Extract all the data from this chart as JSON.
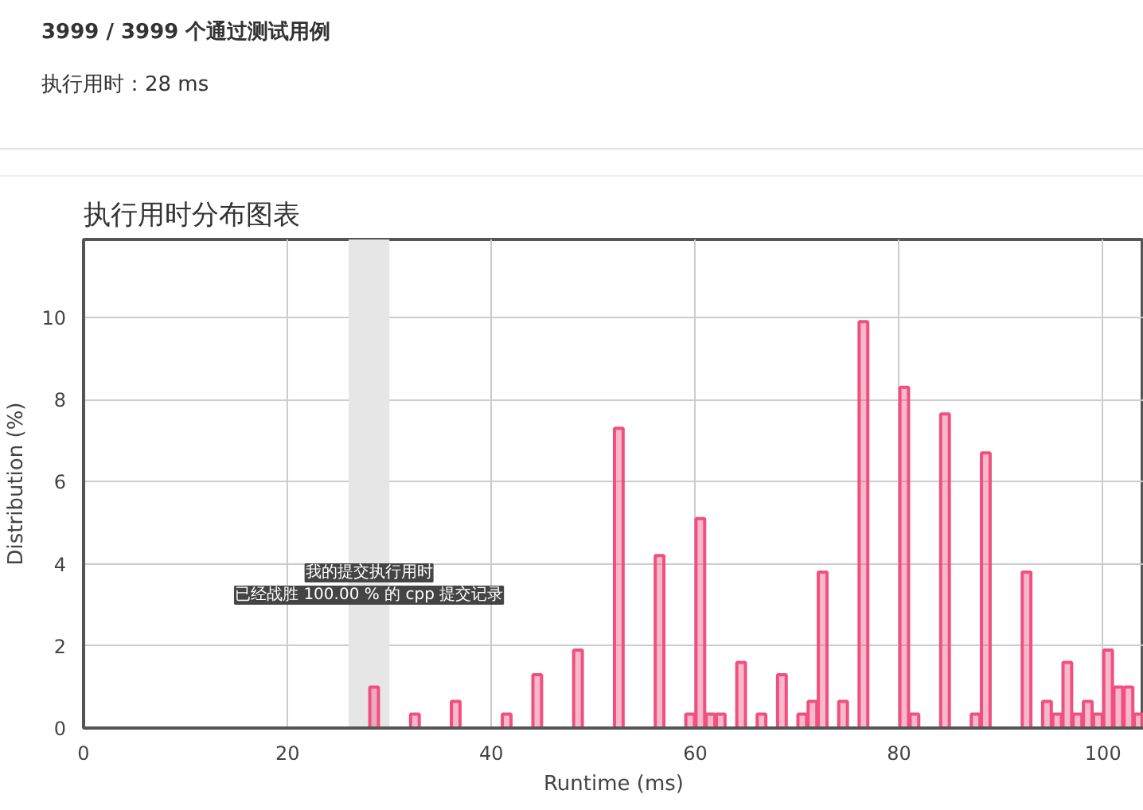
{
  "chart_data": {
    "type": "bar",
    "title": "执行用时分布图表",
    "xlabel": "Runtime (ms)",
    "ylabel": "Distribution (%)",
    "annotations": [
      "3999 / 3999 个通过测试用例",
      "执行用时：28 ms",
      "我的提交执行用时",
      "已经战胜 100.00 % 的 cpp 提交记录"
    ],
    "x": [
      28.5,
      32.5,
      36.5,
      41.5,
      44.5,
      48.5,
      52.5,
      56.5,
      59.5,
      60.5,
      61.5,
      62.5,
      64.5,
      66.5,
      68.5,
      70.5,
      71.5,
      72.5,
      74.5,
      76.5,
      80.5,
      81.5,
      84.5,
      87.5,
      88.5,
      92.5,
      94.5,
      95.5,
      96.5,
      97.5,
      98.5,
      99.5,
      100.5,
      101.5,
      102.5,
      103.5
    ],
    "series": [
      {
        "color": "#f0507f",
        "values": [
          1.0,
          0.34,
          0.65,
          0.34,
          1.3,
          1.9,
          7.3,
          4.2,
          0.34,
          5.1,
          0.34,
          0.34,
          1.6,
          0.34,
          1.3,
          0.34,
          0.65,
          3.8,
          0.65,
          9.9,
          8.3,
          0.34,
          7.65,
          0.34,
          6.7,
          3.8,
          0.65,
          0.34,
          1.6,
          0.34,
          0.65,
          0.34,
          1.9,
          1.0,
          1.0,
          0.34
        ]
      }
    ],
    "xlim": [
      0,
      104
    ],
    "ylim": [
      0,
      11.9
    ],
    "xticks": [
      0,
      20,
      40,
      60,
      80,
      100
    ],
    "yticks": [
      0,
      2,
      4,
      6,
      8,
      10
    ],
    "bands": [
      {
        "axis": "x",
        "from": 26,
        "to": 30,
        "color": "#e6e6e6"
      }
    ],
    "grid": true
  }
}
